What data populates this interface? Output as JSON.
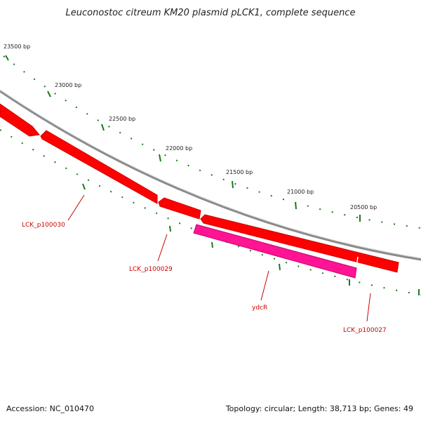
{
  "title": "Leuconostoc citreum KM20 plasmid pLCK1, complete sequence",
  "accession_text": "Accession: NC_010470",
  "summary_text": "Topology: circular; Length: 38,713 bp; Genes: 49",
  "colors": {
    "backbone": "#8a8a8a",
    "forward_gene": "#ff0000",
    "reverse_gene": "#ff1493",
    "tick": "#1a7a1a",
    "gene_label": "#cc0000"
  },
  "ticks": [
    {
      "label": "23500 bp"
    },
    {
      "label": "23000 bp"
    },
    {
      "label": "22500 bp"
    },
    {
      "label": "22000 bp"
    },
    {
      "label": "21500 bp"
    },
    {
      "label": "21000 bp"
    },
    {
      "label": "20500 bp"
    }
  ],
  "genes": [
    {
      "name": "LCK_p100030",
      "strand": "forward"
    },
    {
      "name": "LCK_p100029",
      "strand": "forward"
    },
    {
      "name": "ydcR",
      "strand": "reverse"
    },
    {
      "name": "LCK_p100027",
      "strand": "forward"
    }
  ]
}
